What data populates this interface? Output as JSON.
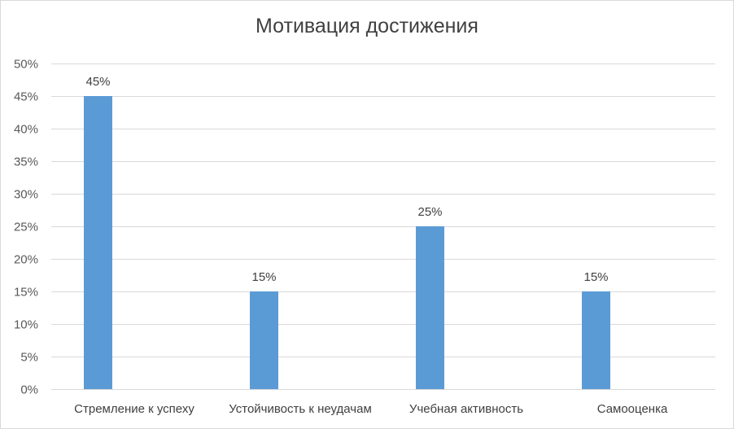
{
  "chart_data": {
    "type": "bar",
    "title": "Мотивация достижения",
    "xlabel": "",
    "ylabel": "",
    "categories": [
      "Стремление к успеху",
      "Устойчивость к неудачам",
      "Учебная активность",
      "Самооценка"
    ],
    "values": [
      45,
      15,
      25,
      15
    ],
    "data_labels": [
      "45%",
      "15%",
      "25%",
      "15%"
    ],
    "ylim": [
      0,
      50
    ],
    "y_ticks": [
      0,
      5,
      10,
      15,
      20,
      25,
      30,
      35,
      40,
      45,
      50
    ],
    "y_tick_labels": [
      "0%",
      "5%",
      "10%",
      "15%",
      "20%",
      "25%",
      "30%",
      "35%",
      "40%",
      "45%",
      "50%"
    ],
    "grid": true,
    "legend": "none",
    "colors": {
      "bar": "#5b9bd5",
      "grid": "#d9d9d9",
      "text": "#595959"
    }
  }
}
